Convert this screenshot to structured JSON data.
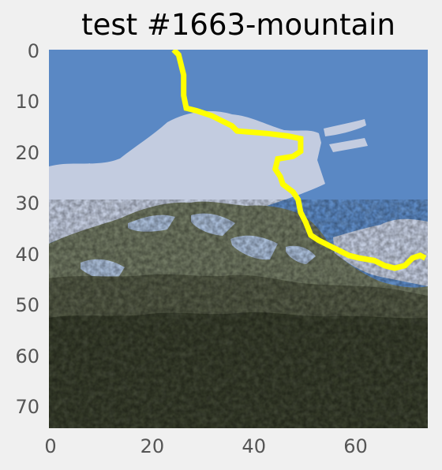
{
  "title": "test #1663-mountain",
  "axes": {
    "xlim": [
      0,
      74
    ],
    "ylim": [
      0,
      74
    ],
    "y_inverted": true,
    "xticks": [
      "0",
      "20",
      "40",
      "60"
    ],
    "yticks": [
      "0",
      "10",
      "20",
      "30",
      "40",
      "50",
      "60",
      "70"
    ]
  },
  "image": {
    "subject": "mountain",
    "colors": {
      "sky": "#5a88c4",
      "cloud": "#c3cce0",
      "rock": "#6c745e",
      "forest_light": "#4e5440",
      "forest_dark": "#343a28",
      "snow": "#a8bcd8",
      "contour": "#ffff00"
    }
  },
  "contour": {
    "color": "#ffff00",
    "points": [
      [
        24.5,
        0
      ],
      [
        25.5,
        1
      ],
      [
        26,
        3
      ],
      [
        26.5,
        5
      ],
      [
        26.5,
        9
      ],
      [
        27,
        11.5
      ],
      [
        29,
        12
      ],
      [
        32,
        13
      ],
      [
        34,
        14
      ],
      [
        36,
        15
      ],
      [
        37,
        16
      ],
      [
        43,
        16.5
      ],
      [
        47,
        17
      ],
      [
        49.5,
        17.5
      ],
      [
        49.5,
        20
      ],
      [
        48,
        21
      ],
      [
        45,
        21.5
      ],
      [
        44.5,
        23.5
      ],
      [
        45.5,
        25
      ],
      [
        46,
        26.5
      ],
      [
        48,
        28
      ],
      [
        49,
        29.5
      ],
      [
        49.5,
        32
      ],
      [
        50.5,
        34
      ],
      [
        51.5,
        36.5
      ],
      [
        53,
        37.5
      ],
      [
        55,
        38.5
      ],
      [
        57,
        39.5
      ],
      [
        59,
        40.5
      ],
      [
        61,
        41
      ],
      [
        64,
        41.5
      ],
      [
        66,
        42.5
      ],
      [
        68,
        43
      ],
      [
        70,
        42.5
      ],
      [
        71.5,
        41
      ],
      [
        73,
        40.5
      ],
      [
        74,
        41
      ]
    ]
  }
}
